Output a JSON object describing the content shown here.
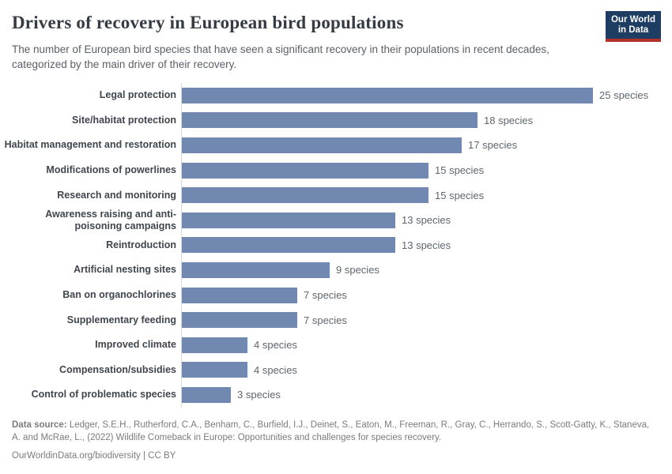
{
  "header": {
    "title": "Drivers of recovery in European bird populations",
    "subtitle": "The number of European bird species that have seen a significant recovery in their populations in recent decades, categorized by the main driver of their recovery.",
    "logo": {
      "line1": "Our World",
      "line2": "in Data",
      "bg_color": "#1d3d63",
      "stripe_color": "#b03228"
    }
  },
  "chart_data": {
    "type": "bar",
    "orientation": "horizontal",
    "title": "Drivers of recovery in European bird populations",
    "categories": [
      "Legal protection",
      "Site/habitat protection",
      "Habitat management and restoration",
      "Modifications of powerlines",
      "Research and monitoring",
      "Awareness raising and anti-poisoning campaigns",
      "Reintroduction",
      "Artificial nesting sites",
      "Ban on organochlorines",
      "Supplementary feeding",
      "Improved climate",
      "Compensation/subsidies",
      "Control of problematic species"
    ],
    "values": [
      25,
      18,
      17,
      15,
      15,
      13,
      13,
      9,
      7,
      7,
      4,
      4,
      3
    ],
    "value_label_suffix": " species",
    "xlim": [
      0,
      25
    ],
    "grid": false,
    "legend": "none",
    "bar_color": "#7188B0",
    "axis_line_color": "#d8dbde"
  },
  "footer": {
    "source_label": "Data source:",
    "source_text": "Ledger, S.E.H., Rutherford, C.A., Benham, C., Burfield, I.J., Deinet, S., Eaton, M., Freeman, R., Gray, C., Herrando, S., Scott-Gatty, K., Staneva, A. and McRae, L., (2022) Wildlife Comeback in Europe: Opportunities and challenges for species recovery.",
    "note": "OurWorldinData.org/biodiversity | CC BY"
  }
}
